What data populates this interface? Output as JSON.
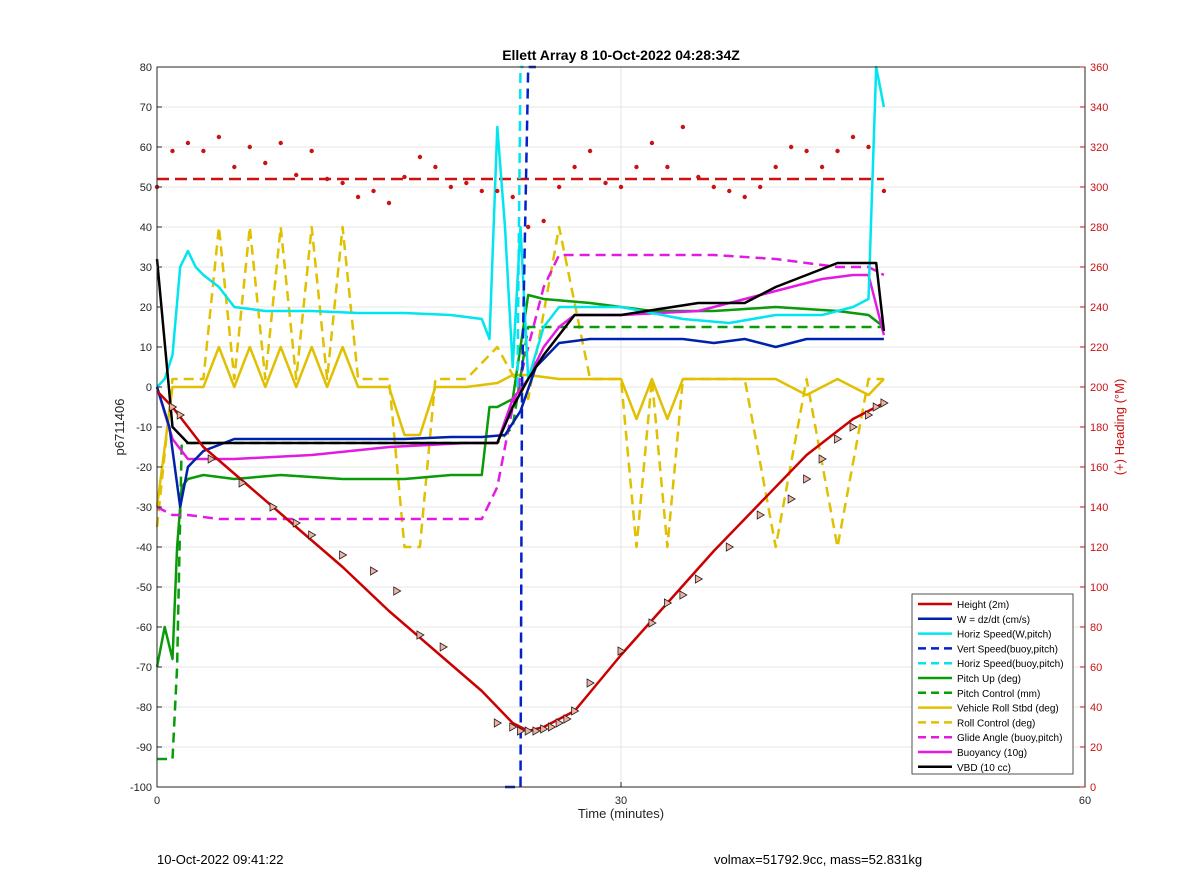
{
  "footer": {
    "timestamp": "10-Oct-2022 09:41:22",
    "volmax_mass": "volmax=51792.9cc, mass=52.831kg"
  },
  "chart_data": {
    "type": "line",
    "title": "Ellett Array 8 10-Oct-2022 04:28:34Z",
    "xlabel": "Time (minutes)",
    "ylabel": "p6711406",
    "y2label": "(+) Heading (°M)",
    "xlim": [
      0,
      60
    ],
    "ylim": [
      -100,
      80
    ],
    "y2lim": [
      0,
      360
    ],
    "xticks": [
      "0",
      "30",
      "60"
    ],
    "yticks": [
      "80",
      "70",
      "60",
      "50",
      "40",
      "30",
      "20",
      "10",
      "0",
      "-10",
      "-20",
      "-30",
      "-40",
      "-50",
      "-60",
      "-70",
      "-80",
      "-90",
      "-100"
    ],
    "y2ticks": [
      "360",
      "340",
      "320",
      "300",
      "280",
      "260",
      "240",
      "220",
      "200",
      "180",
      "160",
      "140",
      "120",
      "100",
      "80",
      "60",
      "40",
      "20",
      "0"
    ],
    "grid": true,
    "legend_position": "bottom-right",
    "heading_mean": 304,
    "series": [
      {
        "name": "Height (2m)",
        "color": "#cc0000",
        "style": "solid",
        "x": [
          0,
          1,
          3,
          6,
          9,
          12,
          15,
          18,
          21,
          23,
          24,
          25,
          27,
          30,
          33,
          36,
          39,
          42,
          45,
          47
        ],
        "y": [
          -1,
          -5,
          -15,
          -25,
          -35,
          -45,
          -56,
          -66,
          -76,
          -84,
          -86,
          -85,
          -81,
          -67,
          -54,
          -41,
          -29,
          -17,
          -8,
          -4
        ]
      },
      {
        "name": "W = dz/dt (cm/s)",
        "color": "#0022aa",
        "style": "solid",
        "x": [
          0,
          0.8,
          1.5,
          2,
          3,
          5,
          8,
          12,
          16,
          19,
          21,
          22.5,
          23.5,
          24.5,
          26,
          28,
          30,
          34,
          36,
          38,
          40,
          42,
          44,
          46,
          47
        ],
        "y": [
          0,
          -10,
          -30,
          -20,
          -16,
          -13,
          -13,
          -13,
          -13,
          -12.5,
          -12.5,
          -12,
          -6,
          5,
          11,
          12,
          12,
          12,
          11,
          12,
          10,
          12,
          12,
          12,
          12
        ]
      },
      {
        "name": "Horiz Speed(W,pitch)",
        "color": "#00e5ee",
        "style": "solid",
        "x": [
          0,
          0.5,
          1,
          1.5,
          2,
          2.5,
          3,
          4,
          5,
          7,
          10,
          13,
          16,
          19,
          21,
          21.5,
          22,
          22.5,
          23,
          23.5,
          24,
          25,
          26,
          28,
          30,
          34,
          37,
          40,
          43,
          45,
          46,
          46.5,
          47
        ],
        "y": [
          0,
          2,
          8,
          30,
          34,
          30,
          28,
          25,
          20,
          19,
          19,
          18.5,
          18.5,
          18,
          17,
          12,
          65,
          40,
          5,
          40,
          2,
          15,
          20,
          20,
          20,
          17,
          16,
          18,
          18,
          20,
          22,
          80,
          70
        ]
      },
      {
        "name": "Vert Speed(buoy,pitch)",
        "color": "#0022cc",
        "style": "dashed",
        "x": [
          22.5,
          23.5,
          23.6,
          24,
          24.5
        ],
        "y": [
          -100,
          -100,
          0,
          80,
          80
        ]
      },
      {
        "name": "Horiz Speed(buoy,pitch)",
        "color": "#00e5ee",
        "style": "dashed",
        "x": [
          23.3,
          23.5,
          23.7
        ],
        "y": [
          0,
          80,
          80
        ]
      },
      {
        "name": "Pitch Up (deg)",
        "color": "#0a9a0a",
        "style": "solid",
        "x": [
          0,
          0.5,
          1,
          1.3,
          1.6,
          2,
          3,
          5,
          8,
          12,
          16,
          19,
          21,
          21.5,
          22,
          23,
          24,
          25,
          28,
          32,
          36,
          40,
          44,
          46,
          47
        ],
        "y": [
          -70,
          -60,
          -68,
          -40,
          -25,
          -23,
          -22,
          -23,
          -22,
          -23,
          -23,
          -22,
          -22,
          -5,
          -5,
          -3,
          23,
          22,
          21,
          19,
          19,
          20,
          19,
          18,
          15
        ]
      },
      {
        "name": "Pitch Control (mm)",
        "color": "#0a9a0a",
        "style": "dashed",
        "x": [
          0,
          1,
          1.3,
          1.6,
          2,
          20,
          21,
          22,
          23,
          24,
          26,
          30,
          40,
          46,
          47
        ],
        "y": [
          -93,
          -93,
          -70,
          -14,
          -14,
          -14,
          -14,
          -14,
          -10,
          15,
          15,
          15,
          15,
          15,
          15
        ]
      },
      {
        "name": "Vehicle Roll Stbd (deg)",
        "color": "#e0c000",
        "style": "solid",
        "x": [
          0,
          1,
          2,
          3,
          4,
          5,
          6,
          7,
          8,
          9,
          10,
          11,
          12,
          13,
          15,
          16,
          17,
          18,
          20,
          22,
          23,
          24,
          26,
          28,
          30,
          31,
          32,
          33,
          34,
          36,
          38,
          40,
          42,
          44,
          46,
          47
        ],
        "y": [
          -30,
          0,
          0,
          0,
          10,
          0,
          10,
          0,
          10,
          0,
          10,
          0,
          10,
          0,
          0,
          -12,
          -12,
          0,
          0,
          1,
          3,
          3,
          2,
          2,
          2,
          -8,
          2,
          -8,
          2,
          2,
          2,
          2,
          -2,
          2,
          -2,
          2
        ]
      },
      {
        "name": "Roll Control (deg)",
        "color": "#e0c000",
        "style": "dashed",
        "x": [
          0,
          1,
          2,
          3,
          4,
          5,
          6,
          7,
          8,
          9,
          10,
          11,
          12,
          13,
          15,
          16,
          17,
          18,
          20,
          22,
          23,
          24,
          26,
          28,
          30,
          31,
          32,
          33,
          34,
          36,
          38,
          40,
          42,
          44,
          46,
          47
        ],
        "y": [
          -35,
          2,
          2,
          2,
          40,
          2,
          40,
          2,
          40,
          2,
          40,
          2,
          40,
          2,
          2,
          -40,
          -40,
          2,
          2,
          10,
          3,
          -3,
          40,
          2,
          2,
          -40,
          2,
          -40,
          2,
          2,
          2,
          -40,
          2,
          -40,
          2,
          2
        ]
      },
      {
        "name": "Glide Angle (buoy,pitch)",
        "color": "#e21ae2",
        "style": "dashed",
        "x": [
          0,
          1,
          2,
          4,
          8,
          12,
          16,
          19,
          21,
          22,
          23,
          24,
          25,
          26,
          28,
          32,
          36,
          40,
          44,
          46,
          47
        ],
        "y": [
          -30,
          -32,
          -32,
          -33,
          -33,
          -33,
          -33,
          -33,
          -33,
          -25,
          -5,
          10,
          25,
          33,
          33,
          33,
          33,
          32,
          30,
          30,
          28
        ]
      },
      {
        "name": "Buoyancy (10g)",
        "color": "#e21ae2",
        "style": "solid",
        "x": [
          0,
          1,
          2,
          5,
          10,
          15,
          20,
          22,
          23,
          24,
          25,
          26,
          27,
          30,
          35,
          40,
          43,
          45,
          46,
          47
        ],
        "y": [
          0,
          -13,
          -18,
          -18,
          -17,
          -15,
          -14,
          -14,
          -3,
          2,
          10,
          15,
          18,
          18,
          19,
          24,
          27,
          28,
          28,
          13
        ]
      },
      {
        "name": "VBD (10 cc)",
        "color": "#000000",
        "style": "solid",
        "x": [
          0,
          1,
          2,
          10,
          15,
          20,
          22,
          23,
          24,
          25,
          27,
          30,
          35,
          38,
          40,
          42,
          44,
          46,
          46.5,
          47
        ],
        "y": [
          32,
          -10,
          -14,
          -14,
          -14,
          -14,
          -14,
          -5,
          2,
          8,
          18,
          18,
          21,
          21,
          25,
          28,
          31,
          31,
          31,
          14
        ]
      }
    ],
    "heading_series": {
      "name": "Heading",
      "color": "#cc1111",
      "x": [
        0,
        1,
        2,
        3,
        4,
        5,
        6,
        7,
        8,
        9,
        10,
        11,
        12,
        13,
        14,
        15,
        16,
        17,
        18,
        19,
        20,
        21,
        22,
        23,
        24,
        25,
        26,
        27,
        28,
        29,
        30,
        31,
        32,
        33,
        34,
        35,
        36,
        37,
        38,
        39,
        40,
        41,
        42,
        43,
        44,
        45,
        46,
        47
      ],
      "y": [
        300,
        318,
        322,
        318,
        325,
        310,
        320,
        312,
        322,
        306,
        318,
        304,
        302,
        295,
        298,
        292,
        305,
        315,
        310,
        300,
        302,
        298,
        298,
        295,
        280,
        283,
        300,
        310,
        318,
        302,
        300,
        310,
        322,
        310,
        330,
        305,
        300,
        298,
        295,
        300,
        310,
        320,
        318,
        310,
        318,
        325,
        320,
        298
      ]
    },
    "markers": {
      "color": "#cc0000",
      "x": [
        1,
        1.5,
        3.5,
        5.5,
        7.5,
        9,
        10,
        12,
        14,
        15.5,
        17,
        18.5,
        22,
        23,
        23.5,
        24,
        24.5,
        25,
        25.5,
        26,
        26.5,
        27,
        28,
        30,
        32,
        33,
        34,
        35,
        37,
        39,
        41,
        42,
        43,
        44,
        45,
        46,
        46.5,
        47
      ],
      "y": [
        -5,
        -7,
        -18,
        -24,
        -30,
        -34,
        -37,
        -42,
        -46,
        -51,
        -62,
        -65,
        -84,
        -85,
        -86,
        -86,
        -86,
        -85.5,
        -85,
        -84,
        -83,
        -81,
        -74,
        -66,
        -59,
        -54,
        -52,
        -48,
        -40,
        -32,
        -28,
        -23,
        -18,
        -13,
        -10,
        -7,
        -5,
        -4
      ]
    }
  }
}
